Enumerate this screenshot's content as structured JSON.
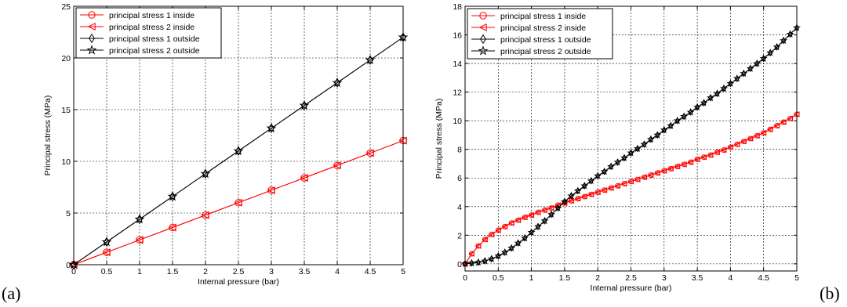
{
  "panel_labels": [
    "(a)",
    "(b)"
  ],
  "chart_data": [
    {
      "type": "line",
      "xlabel": "Internal pressure (bar)",
      "ylabel": "Principal stress (MPa)",
      "xlim": [
        0,
        5
      ],
      "ylim": [
        0,
        25
      ],
      "xticks": [
        0,
        0.5,
        1,
        1.5,
        2,
        2.5,
        3,
        3.5,
        4,
        4.5,
        5
      ],
      "xtick_labels": [
        "0",
        "0.5",
        "1",
        "1.5",
        "2",
        "2.5",
        "3",
        "3.5",
        "4",
        "4.5",
        "5"
      ],
      "yticks": [
        0,
        5,
        10,
        15,
        20,
        25
      ],
      "ytick_labels": [
        "0",
        "5",
        "10",
        "15",
        "20",
        "25"
      ],
      "grid": true,
      "legend_position": "top-left",
      "series": [
        {
          "name": "principal stress 1 inside",
          "color": "#ff0000",
          "marker": "circle",
          "x": [
            0,
            0.5,
            1,
            1.5,
            2,
            2.5,
            3,
            3.5,
            4,
            4.5,
            5
          ],
          "y": [
            0,
            1.2,
            2.4,
            3.6,
            4.8,
            6.0,
            7.2,
            8.4,
            9.6,
            10.8,
            12.0
          ]
        },
        {
          "name": "principal stress 2 inside",
          "color": "#ff0000",
          "marker": "triangle-left",
          "x": [
            0,
            0.5,
            1,
            1.5,
            2,
            2.5,
            3,
            3.5,
            4,
            4.5,
            5
          ],
          "y": [
            0,
            1.2,
            2.4,
            3.6,
            4.8,
            6.0,
            7.2,
            8.4,
            9.6,
            10.8,
            12.0
          ]
        },
        {
          "name": "principal stress 1 outside",
          "color": "#000000",
          "marker": "diamond",
          "x": [
            0,
            0.5,
            1,
            1.5,
            2,
            2.5,
            3,
            3.5,
            4,
            4.5,
            5
          ],
          "y": [
            0,
            2.2,
            4.4,
            6.6,
            8.8,
            11.0,
            13.2,
            15.4,
            17.6,
            19.8,
            22.0
          ]
        },
        {
          "name": "principal stress 2 outside",
          "color": "#000000",
          "marker": "star",
          "x": [
            0,
            0.5,
            1,
            1.5,
            2,
            2.5,
            3,
            3.5,
            4,
            4.5,
            5
          ],
          "y": [
            0,
            2.2,
            4.4,
            6.6,
            8.8,
            11.0,
            13.2,
            15.4,
            17.6,
            19.8,
            22.0
          ]
        }
      ]
    },
    {
      "type": "line",
      "xlabel": "Internal pressure (bar)",
      "ylabel": "Principal stress (MPa)",
      "xlim": [
        0,
        5
      ],
      "ylim": [
        -0.5,
        18
      ],
      "xticks": [
        0,
        0.5,
        1,
        1.5,
        2,
        2.5,
        3,
        3.5,
        4,
        4.5,
        5
      ],
      "xtick_labels": [
        "0",
        "0.5",
        "1",
        "1.5",
        "2",
        "2.5",
        "3",
        "3.5",
        "4",
        "4.5",
        "5"
      ],
      "yticks": [
        0,
        2,
        4,
        6,
        8,
        10,
        12,
        14,
        16,
        18
      ],
      "ytick_labels": [
        "0",
        "2",
        "4",
        "6",
        "8",
        "10",
        "12",
        "14",
        "16",
        "18"
      ],
      "grid": true,
      "legend_position": "top-left",
      "series": [
        {
          "name": "principal stress 1 inside",
          "color": "#ff0000",
          "marker": "circle",
          "x": [
            0,
            0.1,
            0.2,
            0.3,
            0.4,
            0.5,
            0.6,
            0.7,
            0.8,
            0.9,
            1.0,
            1.1,
            1.2,
            1.3,
            1.4,
            1.5,
            1.6,
            1.7,
            1.8,
            1.9,
            2.0,
            2.1,
            2.2,
            2.3,
            2.4,
            2.5,
            2.6,
            2.7,
            2.8,
            2.9,
            3.0,
            3.1,
            3.2,
            3.3,
            3.4,
            3.5,
            3.6,
            3.7,
            3.8,
            3.9,
            4.0,
            4.1,
            4.2,
            4.3,
            4.4,
            4.5,
            4.6,
            4.7,
            4.8,
            4.9,
            5.0
          ],
          "y": [
            0,
            0.7,
            1.25,
            1.7,
            2.05,
            2.35,
            2.6,
            2.85,
            3.05,
            3.25,
            3.4,
            3.6,
            3.75,
            3.9,
            4.1,
            4.25,
            4.4,
            4.55,
            4.7,
            4.85,
            5.0,
            5.15,
            5.3,
            5.45,
            5.6,
            5.75,
            5.9,
            6.05,
            6.2,
            6.35,
            6.5,
            6.65,
            6.8,
            6.95,
            7.1,
            7.3,
            7.45,
            7.6,
            7.8,
            7.95,
            8.15,
            8.35,
            8.55,
            8.75,
            8.95,
            9.15,
            9.4,
            9.65,
            9.9,
            10.15,
            10.45
          ]
        },
        {
          "name": "principal stress 2 inside",
          "color": "#ff0000",
          "marker": "triangle-left",
          "x": [
            0,
            0.1,
            0.2,
            0.3,
            0.4,
            0.5,
            0.6,
            0.7,
            0.8,
            0.9,
            1.0,
            1.1,
            1.2,
            1.3,
            1.4,
            1.5,
            1.6,
            1.7,
            1.8,
            1.9,
            2.0,
            2.1,
            2.2,
            2.3,
            2.4,
            2.5,
            2.6,
            2.7,
            2.8,
            2.9,
            3.0,
            3.1,
            3.2,
            3.3,
            3.4,
            3.5,
            3.6,
            3.7,
            3.8,
            3.9,
            4.0,
            4.1,
            4.2,
            4.3,
            4.4,
            4.5,
            4.6,
            4.7,
            4.8,
            4.9,
            5.0
          ],
          "y": [
            0,
            0.7,
            1.25,
            1.7,
            2.05,
            2.35,
            2.6,
            2.85,
            3.05,
            3.25,
            3.4,
            3.6,
            3.75,
            3.9,
            4.1,
            4.25,
            4.4,
            4.55,
            4.7,
            4.85,
            5.0,
            5.15,
            5.3,
            5.45,
            5.6,
            5.75,
            5.9,
            6.05,
            6.2,
            6.35,
            6.5,
            6.65,
            6.8,
            6.95,
            7.1,
            7.3,
            7.45,
            7.6,
            7.8,
            7.95,
            8.15,
            8.35,
            8.55,
            8.75,
            8.95,
            9.15,
            9.4,
            9.65,
            9.9,
            10.15,
            10.45
          ]
        },
        {
          "name": "principal stress 1 outside",
          "color": "#000000",
          "marker": "diamond",
          "x": [
            0,
            0.1,
            0.2,
            0.3,
            0.4,
            0.5,
            0.6,
            0.7,
            0.8,
            0.9,
            1.0,
            1.1,
            1.2,
            1.3,
            1.4,
            1.5,
            1.6,
            1.7,
            1.8,
            1.9,
            2.0,
            2.1,
            2.2,
            2.3,
            2.4,
            2.5,
            2.6,
            2.7,
            2.8,
            2.9,
            3.0,
            3.1,
            3.2,
            3.3,
            3.4,
            3.5,
            3.6,
            3.7,
            3.8,
            3.9,
            4.0,
            4.1,
            4.2,
            4.3,
            4.4,
            4.5,
            4.6,
            4.7,
            4.8,
            4.9,
            5.0
          ],
          "y": [
            0,
            0.05,
            0.1,
            0.2,
            0.35,
            0.55,
            0.8,
            1.1,
            1.45,
            1.8,
            2.2,
            2.6,
            3.0,
            3.45,
            3.9,
            4.35,
            4.75,
            5.1,
            5.45,
            5.8,
            6.15,
            6.45,
            6.8,
            7.1,
            7.4,
            7.75,
            8.05,
            8.35,
            8.7,
            9.0,
            9.35,
            9.65,
            10.0,
            10.3,
            10.6,
            10.95,
            11.25,
            11.6,
            11.9,
            12.25,
            12.6,
            12.95,
            13.3,
            13.65,
            14.0,
            14.35,
            14.75,
            15.15,
            15.6,
            16.05,
            16.5
          ]
        },
        {
          "name": "principal stress 2 outside",
          "color": "#000000",
          "marker": "star",
          "x": [
            0,
            0.1,
            0.2,
            0.3,
            0.4,
            0.5,
            0.6,
            0.7,
            0.8,
            0.9,
            1.0,
            1.1,
            1.2,
            1.3,
            1.4,
            1.5,
            1.6,
            1.7,
            1.8,
            1.9,
            2.0,
            2.1,
            2.2,
            2.3,
            2.4,
            2.5,
            2.6,
            2.7,
            2.8,
            2.9,
            3.0,
            3.1,
            3.2,
            3.3,
            3.4,
            3.5,
            3.6,
            3.7,
            3.8,
            3.9,
            4.0,
            4.1,
            4.2,
            4.3,
            4.4,
            4.5,
            4.6,
            4.7,
            4.8,
            4.9,
            5.0
          ],
          "y": [
            0,
            0.05,
            0.1,
            0.2,
            0.35,
            0.55,
            0.8,
            1.1,
            1.45,
            1.8,
            2.2,
            2.6,
            3.0,
            3.45,
            3.9,
            4.35,
            4.75,
            5.1,
            5.45,
            5.8,
            6.15,
            6.45,
            6.8,
            7.1,
            7.4,
            7.75,
            8.05,
            8.35,
            8.7,
            9.0,
            9.35,
            9.65,
            10.0,
            10.3,
            10.6,
            10.95,
            11.25,
            11.6,
            11.9,
            12.25,
            12.6,
            12.95,
            13.3,
            13.65,
            14.0,
            14.35,
            14.75,
            15.15,
            15.6,
            16.05,
            16.5
          ]
        }
      ]
    }
  ]
}
